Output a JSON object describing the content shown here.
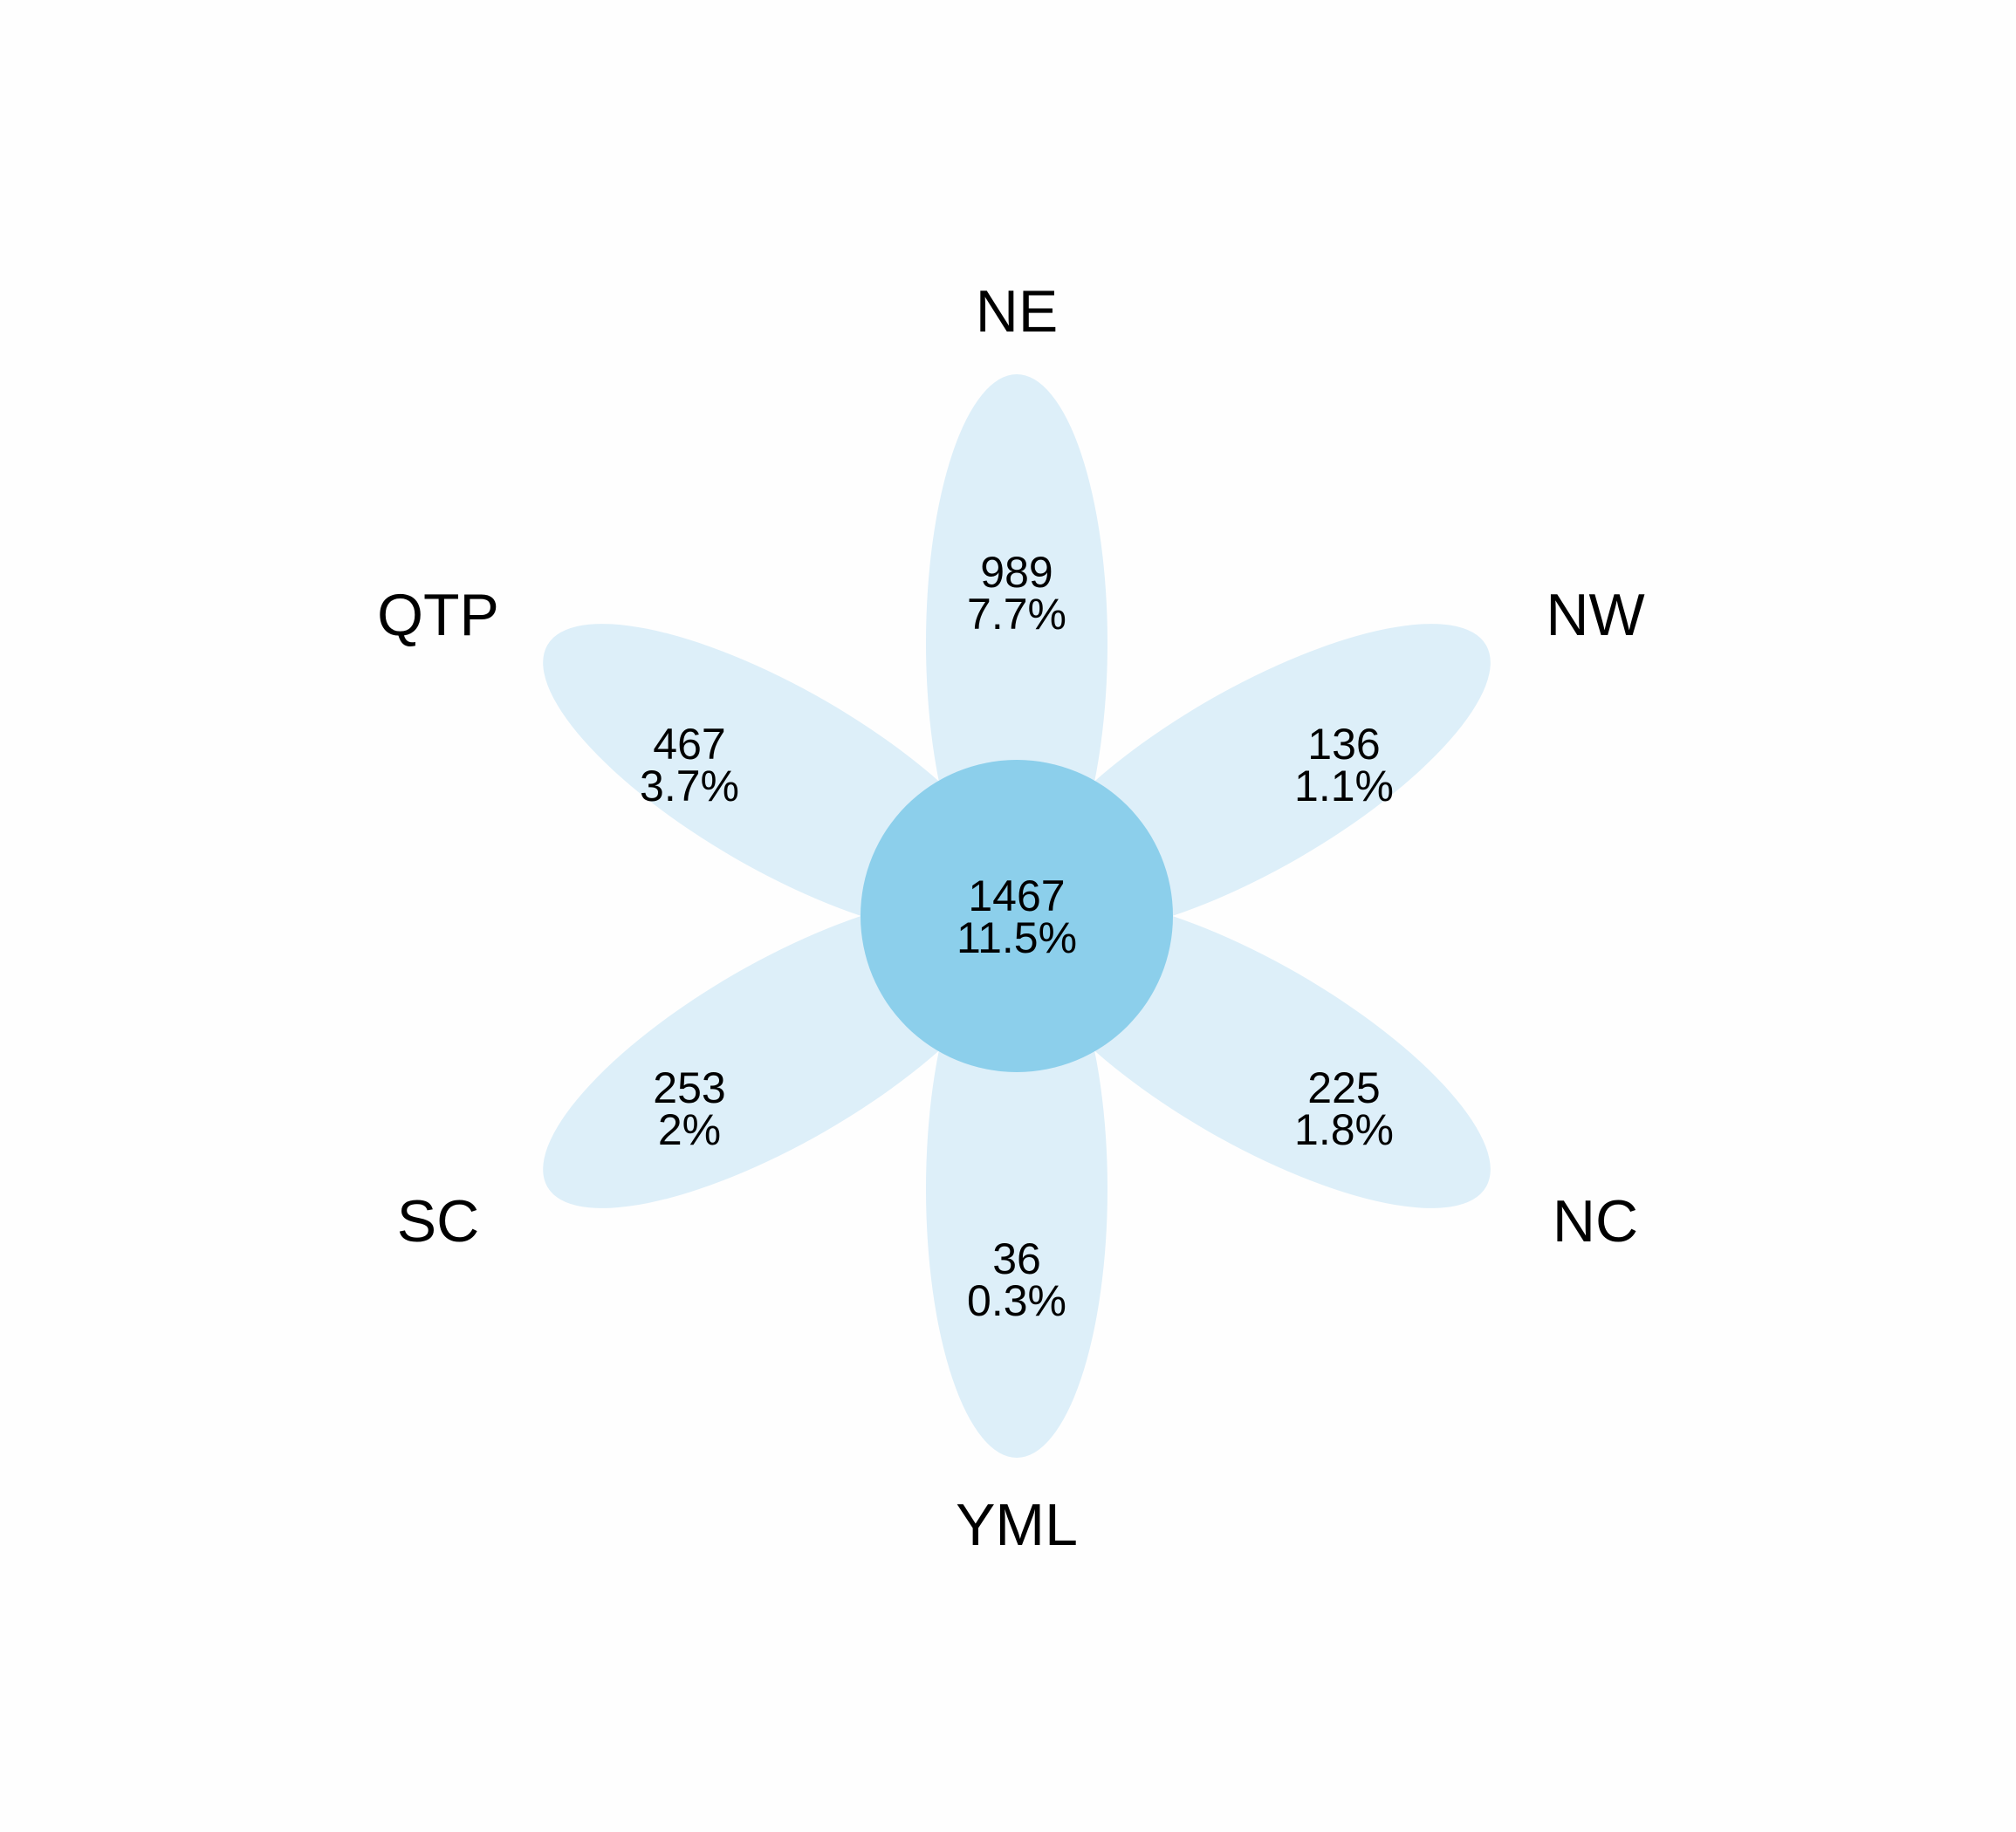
{
  "colors": {
    "background": "#fefefe",
    "petal": "#ddeff9",
    "core": "#8ccfeb",
    "text": "#000000"
  },
  "core": {
    "count": "1467",
    "percent": "11.5%"
  },
  "petals": [
    {
      "name": "NE",
      "count": "989",
      "percent": "7.7%"
    },
    {
      "name": "NW",
      "count": "136",
      "percent": "1.1%"
    },
    {
      "name": "NC",
      "count": "225",
      "percent": "1.8%"
    },
    {
      "name": "YML",
      "count": "36",
      "percent": "0.3%"
    },
    {
      "name": "SC",
      "count": "253",
      "percent": "2%"
    },
    {
      "name": "QTP",
      "count": "467",
      "percent": "3.7%"
    }
  ]
}
